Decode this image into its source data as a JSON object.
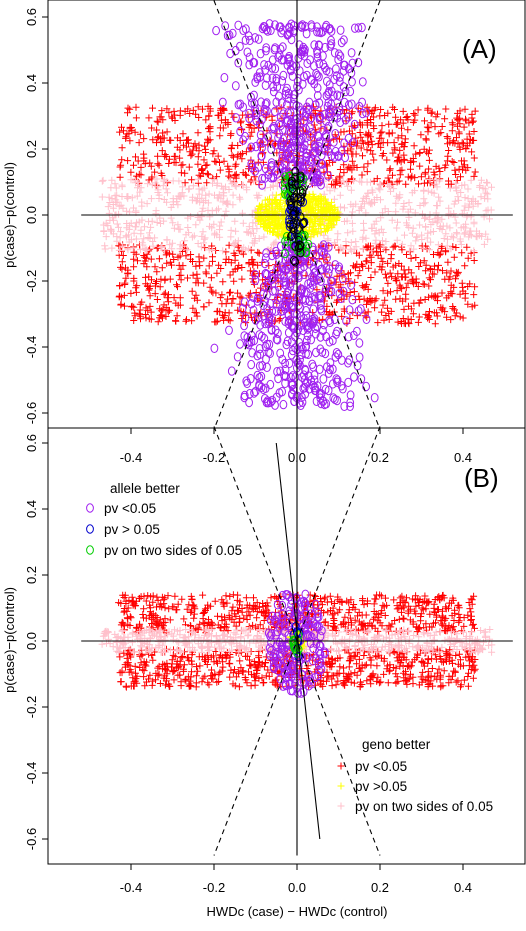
{
  "chart_data": [
    {
      "type": "scatter",
      "panel_label": "(A)",
      "xlabel": "",
      "ylabel": "p(case)−p(control)",
      "xlim": [
        -0.52,
        0.52
      ],
      "ylim": [
        -0.65,
        0.65
      ],
      "x_ticks": [
        "-0.4",
        "-0.2",
        "0.0",
        "0.2",
        "0.4"
      ],
      "y_ticks": [
        "-0.6",
        "-0.4",
        "-0.2",
        "0.0",
        "0.2",
        "0.4",
        "0.6"
      ],
      "reference_lines": [
        {
          "style": "solid",
          "x1": 0,
          "y1": -0.65,
          "x2": 0,
          "y2": 0.65
        },
        {
          "style": "solid",
          "x1": -0.52,
          "y1": 0,
          "x2": 0.52,
          "y2": 0
        },
        {
          "style": "dashed",
          "x1": -0.2,
          "y1": 0.65,
          "x2": 0.2,
          "y2": -0.65
        },
        {
          "style": "dashed",
          "x1": 0.2,
          "y1": 0.65,
          "x2": -0.2,
          "y2": -0.65
        }
      ],
      "series": [
        {
          "name": "geno pv <0.05",
          "marker": "+",
          "color": "#ff0000",
          "distribution": "band",
          "x_range": [
            -0.43,
            0.43
          ],
          "abs_y_range": [
            0.09,
            0.33
          ],
          "count": 1400
        },
        {
          "name": "geno pv on two sides of 0.05",
          "marker": "+",
          "color": "#ffc0cb",
          "distribution": "band",
          "x_range": [
            -0.47,
            0.47
          ],
          "abs_y_range": [
            0.0,
            0.11
          ],
          "count": 700
        },
        {
          "name": "geno pv >0.05",
          "marker": "+",
          "color": "#ffff00",
          "distribution": "ellipse",
          "x_center": 0.0,
          "y_center": 0.0,
          "x_half": 0.1,
          "y_half": 0.07,
          "count": 500
        },
        {
          "name": "allele pv <0.05",
          "marker": "o",
          "color": "#a020f0",
          "distribution": "diamond",
          "x_half": 0.2,
          "abs_y_range": [
            0.09,
            0.58
          ],
          "count": 900
        },
        {
          "name": "allele pv > 0.05",
          "marker": "o",
          "color": "#0000cd",
          "distribution": "ellipse",
          "x_center": 0.0,
          "y_center": 0.0,
          "x_half": 0.02,
          "y_half": 0.12,
          "count": 40
        },
        {
          "name": "allele pv on two sides of 0.05",
          "marker": "o",
          "color": "#00cd00",
          "distribution": "band",
          "x_range": [
            -0.03,
            0.03
          ],
          "abs_y_range": [
            0.06,
            0.12
          ],
          "count": 40
        },
        {
          "name": "",
          "marker": "o",
          "color": "#000000",
          "distribution": "ellipse",
          "x_center": 0.0,
          "y_center": 0.0,
          "x_half": 0.02,
          "y_half": 0.15,
          "count": 40
        }
      ]
    },
    {
      "type": "scatter",
      "panel_label": "(B)",
      "xlabel": "HWDc (case) − HWDc (control)",
      "ylabel": "p(case)−p(control)",
      "xlim": [
        -0.52,
        0.52
      ],
      "ylim": [
        -0.65,
        0.65
      ],
      "x_ticks": [
        "-0.4",
        "-0.2",
        "0.0",
        "0.2",
        "0.4"
      ],
      "y_ticks": [
        "-0.6",
        "-0.4",
        "-0.2",
        "0.0",
        "0.2",
        "0.4",
        "0.6"
      ],
      "reference_lines": [
        {
          "style": "solid",
          "x1": 0,
          "y1": -0.65,
          "x2": 0,
          "y2": 0.65
        },
        {
          "style": "solid",
          "x1": -0.52,
          "y1": 0,
          "x2": 0.52,
          "y2": 0
        },
        {
          "style": "dashed",
          "x1": -0.2,
          "y1": 0.65,
          "x2": 0.2,
          "y2": -0.65
        },
        {
          "style": "dashed",
          "x1": 0.2,
          "y1": 0.65,
          "x2": -0.2,
          "y2": -0.65
        },
        {
          "style": "solid",
          "x1": -0.05,
          "y1": 0.6,
          "x2": 0.055,
          "y2": -0.6
        }
      ],
      "series": [
        {
          "name": "geno pv <0.05",
          "marker": "+",
          "color": "#ff0000",
          "distribution": "band",
          "x_range": [
            -0.43,
            0.43
          ],
          "abs_y_range": [
            0.025,
            0.14
          ],
          "count": 1200
        },
        {
          "name": "geno pv on two sides of 0.05",
          "marker": "+",
          "color": "#ffc0cb",
          "distribution": "band",
          "x_range": [
            -0.47,
            0.47
          ],
          "abs_y_range": [
            0.0,
            0.035
          ],
          "count": 500
        },
        {
          "name": "geno pv >0.05",
          "marker": "+",
          "color": "#ffff00",
          "distribution": "ellipse",
          "x_center": 0.0,
          "y_center": 0.0,
          "x_half": 0.02,
          "y_half": 0.03,
          "count": 80
        },
        {
          "name": "allele pv <0.05",
          "marker": "o",
          "color": "#a020f0",
          "distribution": "ellipse",
          "x_center": 0.0,
          "y_center": 0.0,
          "x_half": 0.07,
          "y_half": 0.16,
          "count": 180
        },
        {
          "name": "allele pv > 0.05",
          "marker": "o",
          "color": "#0000cd",
          "distribution": "ellipse",
          "x_center": 0.0,
          "y_center": 0.0,
          "x_half": 0.01,
          "y_half": 0.05,
          "count": 10
        },
        {
          "name": "allele pv on two sides of 0.05",
          "marker": "o",
          "color": "#00cd00",
          "distribution": "ellipse",
          "x_center": 0.0,
          "y_center": 0.0,
          "x_half": 0.01,
          "y_half": 0.04,
          "count": 10
        }
      ],
      "legends": [
        {
          "title": "allele better",
          "placement": "top-left",
          "entries": [
            {
              "label": "pv <0.05",
              "marker": "o",
              "color": "#a020f0"
            },
            {
              "label": "pv > 0.05",
              "marker": "o",
              "color": "#0000cd"
            },
            {
              "label": "pv on two sides of 0.05",
              "marker": "o",
              "color": "#00cd00"
            }
          ]
        },
        {
          "title": "geno better",
          "placement": "bottom-right",
          "entries": [
            {
              "label": "pv <0.05",
              "marker": "+",
              "color": "#ff0000"
            },
            {
              "label": "pv >0.05",
              "marker": "+",
              "color": "#ffff00"
            },
            {
              "label": "pv on two sides of 0.05",
              "marker": "+",
              "color": "#ffc0cb"
            }
          ]
        }
      ]
    }
  ]
}
